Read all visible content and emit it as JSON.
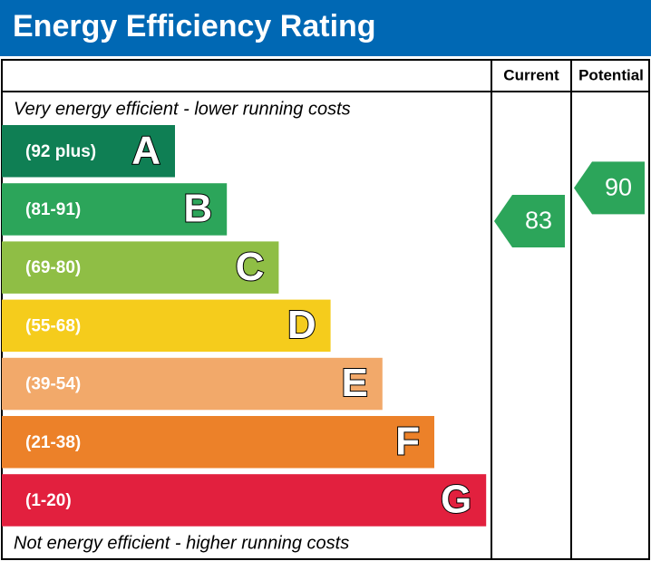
{
  "header": {
    "title": "Energy Efficiency Rating"
  },
  "columns": [
    "Current",
    "Potential"
  ],
  "top_note": "Very energy efficient - lower running costs",
  "bottom_note": "Not energy efficient - higher running costs",
  "bands": [
    {
      "range": "(92 plus)",
      "letter": "A",
      "color": "#0f7f54"
    },
    {
      "range": "(81-91)",
      "letter": "B",
      "color": "#2ca55a"
    },
    {
      "range": "(69-80)",
      "letter": "C",
      "color": "#8fbe45"
    },
    {
      "range": "(55-68)",
      "letter": "D",
      "color": "#f5cc1c"
    },
    {
      "range": "(39-54)",
      "letter": "E",
      "color": "#f2a96a"
    },
    {
      "range": "(21-38)",
      "letter": "F",
      "color": "#ec8129"
    },
    {
      "range": "(1-20)",
      "letter": "G",
      "color": "#e2203e"
    }
  ],
  "ratings": [
    {
      "value": 83,
      "color": "#2ca55a"
    },
    {
      "value": 90,
      "color": "#2ca55a"
    }
  ]
}
